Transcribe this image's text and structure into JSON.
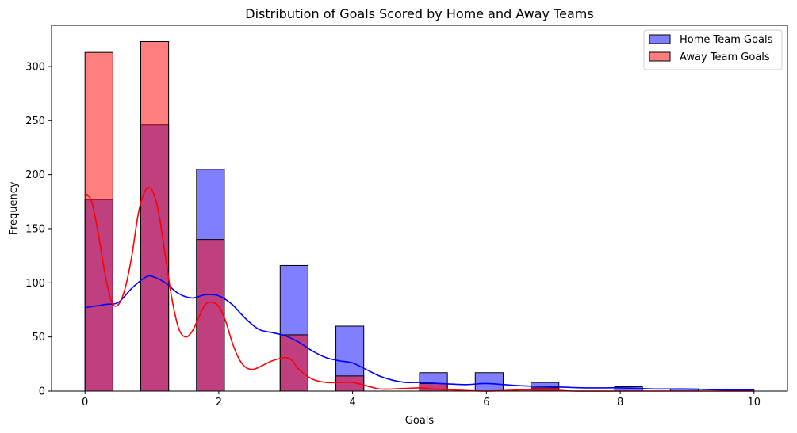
{
  "chart_data": {
    "type": "bar",
    "title": "Distribution of Goals Scored by Home and Away Teams",
    "xlabel": "Goals",
    "ylabel": "Frequency",
    "xlim": [
      -0.5,
      10.5
    ],
    "ylim": [
      0,
      338
    ],
    "xticks": [
      0,
      2,
      4,
      6,
      8,
      10
    ],
    "yticks": [
      0,
      50,
      100,
      150,
      200,
      250,
      300
    ],
    "grid": false,
    "legend_position": "top-right",
    "series": [
      {
        "name": "Home Team Goals",
        "color": "#0000ff",
        "fill_opacity": 0.5,
        "bins": [
          {
            "x0": 0.0,
            "x1": 0.417,
            "value": 177
          },
          {
            "x0": 0.833,
            "x1": 1.25,
            "value": 246
          },
          {
            "x0": 1.667,
            "x1": 2.083,
            "value": 205
          },
          {
            "x0": 2.917,
            "x1": 3.333,
            "value": 116
          },
          {
            "x0": 3.75,
            "x1": 4.167,
            "value": 60
          },
          {
            "x0": 5.0,
            "x1": 5.417,
            "value": 17
          },
          {
            "x0": 5.833,
            "x1": 6.25,
            "value": 17
          },
          {
            "x0": 6.667,
            "x1": 7.083,
            "value": 8
          },
          {
            "x0": 7.917,
            "x1": 8.333,
            "value": 4
          },
          {
            "x0": 8.75,
            "x1": 9.167,
            "value": 2
          },
          {
            "x0": 9.583,
            "x1": 10.0,
            "value": 1
          }
        ],
        "kde": [
          [
            0,
            77
          ],
          [
            0.3,
            80
          ],
          [
            0.5,
            82
          ],
          [
            0.7,
            95
          ],
          [
            0.9,
            105
          ],
          [
            1.0,
            106
          ],
          [
            1.2,
            100
          ],
          [
            1.4,
            90
          ],
          [
            1.6,
            86
          ],
          [
            1.8,
            89
          ],
          [
            2.0,
            88
          ],
          [
            2.2,
            80
          ],
          [
            2.4,
            67
          ],
          [
            2.6,
            57
          ],
          [
            2.8,
            54
          ],
          [
            3.0,
            51
          ],
          [
            3.2,
            45
          ],
          [
            3.4,
            37
          ],
          [
            3.6,
            31
          ],
          [
            3.8,
            28
          ],
          [
            4.0,
            26
          ],
          [
            4.2,
            20
          ],
          [
            4.4,
            14
          ],
          [
            4.6,
            10
          ],
          [
            4.8,
            8
          ],
          [
            5.0,
            8
          ],
          [
            5.3,
            7
          ],
          [
            5.7,
            6
          ],
          [
            6.0,
            7
          ],
          [
            6.5,
            5
          ],
          [
            7.0,
            4
          ],
          [
            7.5,
            3
          ],
          [
            8.0,
            3
          ],
          [
            8.5,
            2
          ],
          [
            9.0,
            2
          ],
          [
            9.5,
            1
          ],
          [
            10.0,
            1
          ]
        ]
      },
      {
        "name": "Away Team Goals",
        "color": "#ff0000",
        "fill_opacity": 0.5,
        "bins": [
          {
            "x0": 0.0,
            "x1": 0.417,
            "value": 313
          },
          {
            "x0": 0.833,
            "x1": 1.25,
            "value": 323
          },
          {
            "x0": 1.667,
            "x1": 2.083,
            "value": 140
          },
          {
            "x0": 2.917,
            "x1": 3.333,
            "value": 52
          },
          {
            "x0": 3.75,
            "x1": 4.167,
            "value": 14
          },
          {
            "x0": 5.0,
            "x1": 5.417,
            "value": 7
          },
          {
            "x0": 6.667,
            "x1": 7.083,
            "value": 3
          }
        ],
        "kde": [
          [
            0,
            183
          ],
          [
            0.1,
            175
          ],
          [
            0.2,
            145
          ],
          [
            0.3,
            108
          ],
          [
            0.4,
            82
          ],
          [
            0.5,
            80
          ],
          [
            0.6,
            95
          ],
          [
            0.7,
            125
          ],
          [
            0.8,
            165
          ],
          [
            0.9,
            185
          ],
          [
            1.0,
            186
          ],
          [
            1.1,
            165
          ],
          [
            1.2,
            125
          ],
          [
            1.3,
            85
          ],
          [
            1.4,
            58
          ],
          [
            1.5,
            50
          ],
          [
            1.6,
            55
          ],
          [
            1.7,
            68
          ],
          [
            1.8,
            80
          ],
          [
            1.9,
            82
          ],
          [
            2.0,
            78
          ],
          [
            2.1,
            65
          ],
          [
            2.2,
            45
          ],
          [
            2.3,
            30
          ],
          [
            2.4,
            22
          ],
          [
            2.5,
            20
          ],
          [
            2.6,
            22
          ],
          [
            2.8,
            28
          ],
          [
            3.0,
            31
          ],
          [
            3.1,
            28
          ],
          [
            3.2,
            20
          ],
          [
            3.4,
            11
          ],
          [
            3.6,
            8
          ],
          [
            3.8,
            8
          ],
          [
            4.0,
            8
          ],
          [
            4.2,
            5
          ],
          [
            4.4,
            2
          ],
          [
            4.6,
            2
          ],
          [
            5.0,
            3
          ],
          [
            5.2,
            2
          ],
          [
            5.5,
            1
          ],
          [
            6.0,
            0
          ],
          [
            6.5,
            1
          ],
          [
            7.0,
            1
          ],
          [
            7.3,
            0
          ],
          [
            8.0,
            0
          ],
          [
            10.0,
            0
          ]
        ]
      }
    ]
  }
}
